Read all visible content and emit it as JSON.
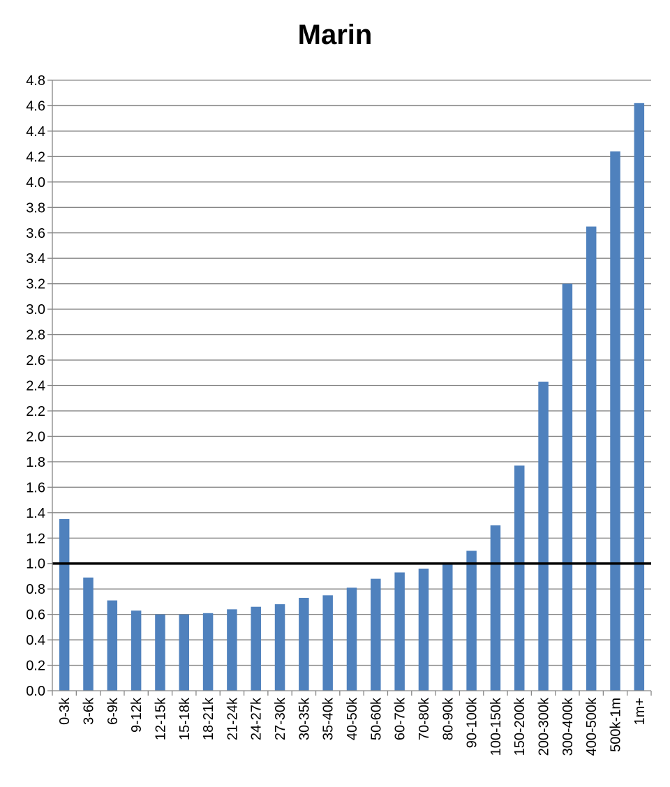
{
  "chart_data": {
    "type": "bar",
    "title": "Marin",
    "xlabel": "",
    "ylabel": "",
    "categories": [
      "0-3k",
      "3-6k",
      "6-9k",
      "9-12k",
      "12-15k",
      "15-18k",
      "18-21k",
      "21-24k",
      "24-27k",
      "27-30k",
      "30-35k",
      "35-40k",
      "40-50k",
      "50-60k",
      "60-70k",
      "70-80k",
      "80-90k",
      "90-100k",
      "100-150k",
      "150-200k",
      "200-300k",
      "300-400k",
      "400-500k",
      "500k-1m",
      "1m+"
    ],
    "series": [
      {
        "values": [
          1.35,
          0.89,
          0.71,
          0.63,
          0.6,
          0.6,
          0.61,
          0.64,
          0.66,
          0.68,
          0.73,
          0.75,
          0.81,
          0.88,
          0.93,
          0.96,
          0.99,
          1.1,
          1.3,
          1.77,
          2.43,
          3.2,
          3.65,
          4.24,
          4.62
        ],
        "color": "#4F81BD"
      }
    ],
    "ylim": [
      0,
      4.8
    ],
    "yticks": [
      "0.0",
      "0.2",
      "0.4",
      "0.6",
      "0.8",
      "1.0",
      "1.2",
      "1.4",
      "1.6",
      "1.8",
      "2.0",
      "2.2",
      "2.4",
      "2.6",
      "2.8",
      "3.0",
      "3.2",
      "3.4",
      "3.6",
      "3.8",
      "4.0",
      "4.2",
      "4.4",
      "4.6",
      "4.8"
    ],
    "reference_line": {
      "y": 1.0,
      "color": "#000000"
    },
    "grid": true,
    "grid_color": "#868686",
    "legend": "none"
  }
}
